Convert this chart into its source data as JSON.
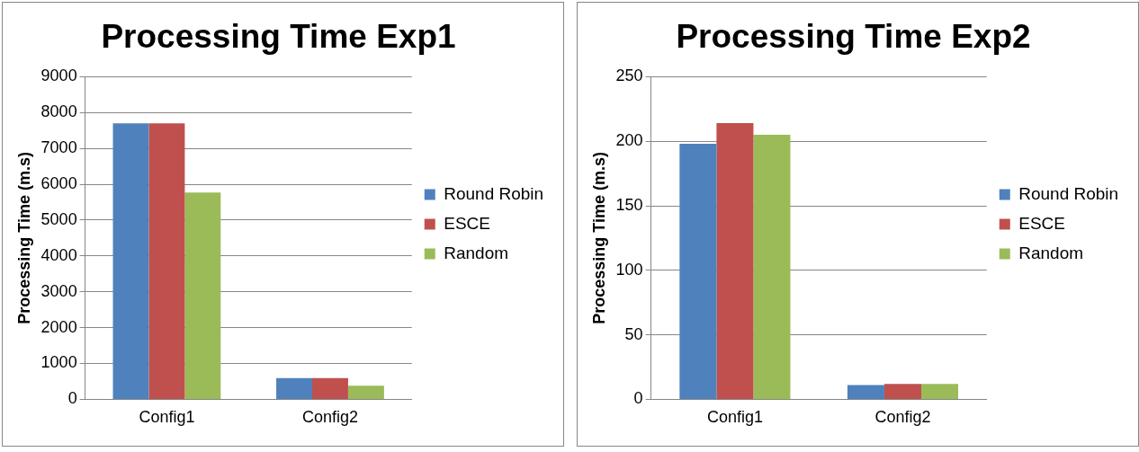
{
  "chart_data": [
    {
      "type": "bar",
      "title": "Processing Time Exp1",
      "ylabel": "Processing Time (m.s)",
      "categories": [
        "Config1",
        "Config2"
      ],
      "series": [
        {
          "name": "Round Robin",
          "color": "#4f81bd",
          "values": [
            7700,
            590
          ]
        },
        {
          "name": "ESCE",
          "color": "#c0504d",
          "values": [
            7700,
            590
          ]
        },
        {
          "name": "Random",
          "color": "#9bbb59",
          "values": [
            5770,
            380
          ]
        }
      ],
      "ylim": [
        0,
        9000
      ],
      "yticks": [
        0,
        1000,
        2000,
        3000,
        4000,
        5000,
        6000,
        7000,
        8000,
        9000
      ],
      "grid": "y",
      "legend": "right"
    },
    {
      "type": "bar",
      "title": "Processing Time Exp2",
      "ylabel": "Processing Time (m.s)",
      "categories": [
        "Config1",
        "Config2"
      ],
      "series": [
        {
          "name": "Round Robin",
          "color": "#4f81bd",
          "values": [
            198,
            11
          ]
        },
        {
          "name": "ESCE",
          "color": "#c0504d",
          "values": [
            214,
            12
          ]
        },
        {
          "name": "Random",
          "color": "#9bbb59",
          "values": [
            205,
            12
          ]
        }
      ],
      "ylim": [
        0,
        250
      ],
      "yticks": [
        0,
        50,
        100,
        150,
        200,
        250
      ],
      "grid": "y",
      "legend": "right"
    }
  ]
}
